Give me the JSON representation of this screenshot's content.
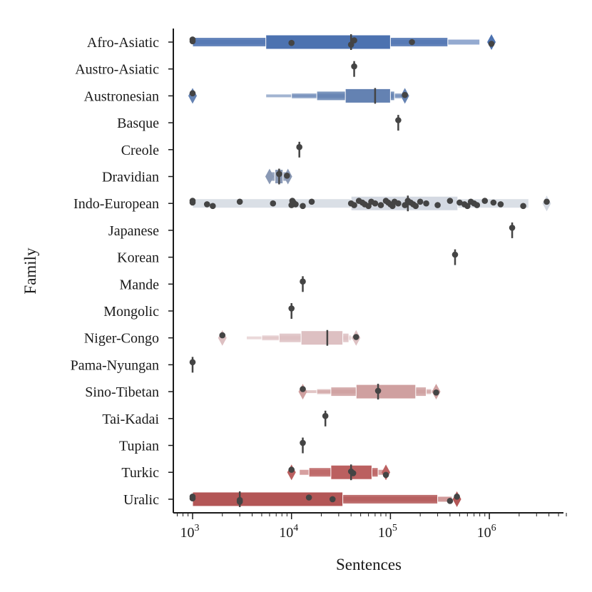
{
  "chart_data": {
    "type": "boxen-strip",
    "xlabel": "Sentences",
    "ylabel": "Family",
    "x_scale": "log",
    "xlim": [
      700,
      6000000
    ],
    "x_ticks": [
      {
        "value": 1000,
        "base": "10",
        "exp": "3"
      },
      {
        "value": 10000,
        "base": "10",
        "exp": "4"
      },
      {
        "value": 100000,
        "base": "10",
        "exp": "5"
      },
      {
        "value": 1000000,
        "base": "10",
        "exp": "6"
      }
    ],
    "grid": false,
    "categories": [
      "Afro-Asiatic",
      "Austro-Asiatic",
      "Austronesian",
      "Basque",
      "Creole",
      "Dravidian",
      "Indo-European",
      "Japanese",
      "Korean",
      "Mande",
      "Mongolic",
      "Niger-Congo",
      "Pama-Nyungan",
      "Sino-Tibetan",
      "Tai-Kadai",
      "Tupian",
      "Turkic",
      "Uralic"
    ],
    "colors": [
      "#4c72b0",
      "#587ab1",
      "#6482b2",
      "#7189b3",
      "#7d91b4",
      "#8a99b5",
      "#d4d9e2",
      "#b09da6",
      "#b5959d",
      "#ba8d94",
      "#bf858b",
      "#ddc0c2",
      "#c97579",
      "#cfa0a0",
      "#d9a9a8",
      "#c05d5d",
      "#bb6060",
      "#b35656"
    ],
    "boxes": [
      {
        "family": "Afro-Asiatic",
        "median": 40000,
        "levels": [
          [
            5500,
            100000
          ],
          [
            1000,
            380000
          ],
          [
            1000,
            800000
          ]
        ],
        "outliers_marker": [
          1050000
        ]
      },
      {
        "family": "Austro-Asiatic",
        "median": 43000,
        "levels": [],
        "outliers_marker": []
      },
      {
        "family": "Austronesian",
        "median": 70000,
        "levels": [
          [
            35000,
            100000
          ],
          [
            18000,
            110000
          ],
          [
            10000,
            130000
          ],
          [
            5500,
            150000
          ]
        ],
        "outliers_marker": [
          1000,
          140000
        ]
      },
      {
        "family": "Basque",
        "median": 120000,
        "levels": [],
        "outliers_marker": []
      },
      {
        "family": "Creole",
        "median": 12000,
        "levels": [],
        "outliers_marker": []
      },
      {
        "family": "Dravidian",
        "median": 7500,
        "levels": [
          [
            6800,
            8200
          ],
          [
            6000,
            9000
          ]
        ],
        "outliers_marker": [
          6000,
          9200
        ]
      },
      {
        "family": "Indo-European",
        "median": 150000,
        "levels": [
          [
            40000,
            480000
          ],
          [
            1000,
            2500000
          ]
        ],
        "outliers_marker": [
          3800000
        ]
      },
      {
        "family": "Japanese",
        "median": 1700000,
        "levels": [],
        "outliers_marker": []
      },
      {
        "family": "Korean",
        "median": 450000,
        "levels": [],
        "outliers_marker": []
      },
      {
        "family": "Mande",
        "median": 13000,
        "levels": [],
        "outliers_marker": []
      },
      {
        "family": "Mongolic",
        "median": 10000,
        "levels": [],
        "outliers_marker": []
      },
      {
        "family": "Niger-Congo",
        "median": 23000,
        "levels": [
          [
            12500,
            33000
          ],
          [
            7500,
            38000
          ],
          [
            5000,
            40000
          ],
          [
            3500,
            42000
          ]
        ],
        "outliers_marker": [
          2000,
          45000
        ]
      },
      {
        "family": "Pama-Nyungan",
        "median": 1000,
        "levels": [],
        "outliers_marker": []
      },
      {
        "family": "Sino-Tibetan",
        "median": 75000,
        "levels": [
          [
            45000,
            180000
          ],
          [
            25000,
            230000
          ],
          [
            18000,
            260000
          ],
          [
            14000,
            280000
          ]
        ],
        "outliers_marker": [
          13000,
          290000
        ]
      },
      {
        "family": "Tai-Kadai",
        "median": 22000,
        "levels": [],
        "outliers_marker": []
      },
      {
        "family": "Tupian",
        "median": 13000,
        "levels": [],
        "outliers_marker": []
      },
      {
        "family": "Turkic",
        "median": 40000,
        "levels": [
          [
            25000,
            65000
          ],
          [
            15000,
            75000
          ],
          [
            12000,
            85000
          ]
        ],
        "outliers_marker": [
          10000,
          90000
        ]
      },
      {
        "family": "Uralic",
        "median": 3000,
        "levels": [
          [
            1000,
            33000
          ],
          [
            1000,
            300000
          ],
          [
            1000,
            420000
          ]
        ],
        "outliers_marker": [
          470000
        ]
      }
    ],
    "points": {
      "Afro-Asiatic": [
        1000,
        1000,
        10000,
        40000,
        43000,
        165000,
        1050000
      ],
      "Austro-Asiatic": [
        43000
      ],
      "Austronesian": [
        1000,
        140000
      ],
      "Basque": [
        120000
      ],
      "Creole": [
        12000
      ],
      "Dravidian": [
        7500,
        9000
      ],
      "Indo-European": [
        1000,
        1000,
        1400,
        1600,
        3000,
        6500,
        10000,
        10200,
        10500,
        11000,
        13000,
        16000,
        40000,
        43000,
        48000,
        52000,
        55000,
        60000,
        64000,
        70000,
        80000,
        90000,
        95000,
        100000,
        105000,
        110000,
        120000,
        140000,
        150000,
        160000,
        170000,
        180000,
        200000,
        230000,
        300000,
        400000,
        500000,
        560000,
        600000,
        650000,
        700000,
        750000,
        900000,
        1100000,
        1300000,
        2200000,
        3800000
      ],
      "Japanese": [
        1700000
      ],
      "Korean": [
        450000
      ],
      "Mande": [
        13000
      ],
      "Mongolic": [
        10000
      ],
      "Niger-Congo": [
        2000,
        45000
      ],
      "Pama-Nyungan": [
        1000
      ],
      "Sino-Tibetan": [
        13000,
        75000,
        290000
      ],
      "Tai-Kadai": [
        22000
      ],
      "Tupian": [
        13000
      ],
      "Turkic": [
        10000,
        40000,
        42000,
        90000
      ],
      "Uralic": [
        1000,
        1000,
        3000,
        3000,
        15000,
        26000,
        400000,
        470000
      ]
    }
  }
}
